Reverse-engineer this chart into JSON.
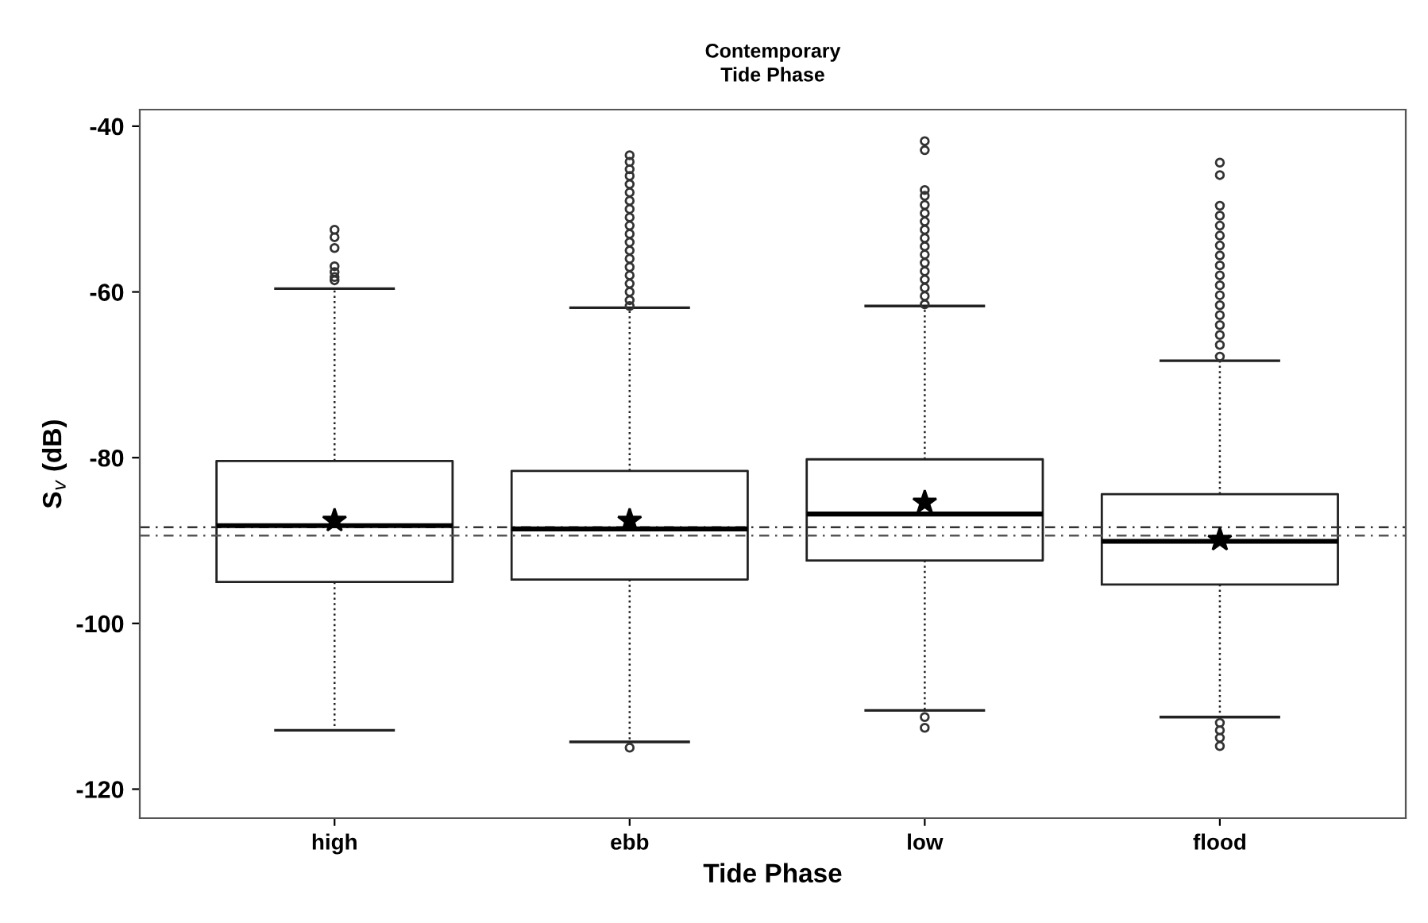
{
  "chart_data": {
    "type": "box",
    "title": "Contemporary",
    "subtitle": "Tide Phase",
    "xlabel": "Tide Phase",
    "ylabel": "S$_{v}$ (dB)",
    "categories": [
      "high",
      "ebb",
      "low",
      "flood"
    ],
    "boxes": [
      {
        "low": -112.9,
        "q1": -95.0,
        "median": -88.2,
        "q3": -80.4,
        "high": -59.6,
        "mean": -87.6,
        "outliers": [
          -52.5,
          -53.4,
          -54.7,
          -56.9,
          -57.6,
          -58.2,
          -58.6
        ]
      },
      {
        "low": -114.3,
        "q1": -94.7,
        "median": -88.6,
        "q3": -81.6,
        "high": -61.9,
        "mean": -87.6,
        "outliers": [
          -43.5,
          -44.3,
          -45.2,
          -46.0,
          -47.0,
          -48.0,
          -49.0,
          -50.0,
          -51.0,
          -52.0,
          -53.0,
          -54.0,
          -55.0,
          -56.0,
          -57.0,
          -58.0,
          -59.0,
          -60.0,
          -61.0,
          -61.7,
          -115.0
        ]
      },
      {
        "low": -110.5,
        "q1": -92.4,
        "median": -86.8,
        "q3": -80.2,
        "high": -61.7,
        "mean": -85.4,
        "outliers": [
          -41.8,
          -42.9,
          -47.7,
          -48.4,
          -49.5,
          -50.5,
          -51.5,
          -52.5,
          -53.5,
          -54.5,
          -55.5,
          -56.5,
          -57.5,
          -58.5,
          -59.5,
          -60.5,
          -61.5,
          -111.3,
          -112.6
        ]
      },
      {
        "low": -111.3,
        "q1": -95.3,
        "median": -90.1,
        "q3": -84.4,
        "high": -68.3,
        "mean": -89.9,
        "outliers": [
          -44.4,
          -45.9,
          -49.6,
          -50.8,
          -52.0,
          -53.2,
          -54.4,
          -55.6,
          -56.8,
          -58.0,
          -59.2,
          -60.4,
          -61.6,
          -62.8,
          -64.0,
          -65.2,
          -66.4,
          -67.8,
          -112.0,
          -112.9,
          -113.8,
          -114.8
        ]
      }
    ],
    "ylim": [
      -123.5,
      -38
    ],
    "yticks": [
      -40,
      -60,
      -80,
      -100,
      -120
    ],
    "ref_lines": [
      {
        "axis": "y",
        "value": -88.4,
        "color": "#333333",
        "line_style": "dashed"
      },
      {
        "axis": "y",
        "value": -89.4,
        "color": "#555555",
        "line_style": "dashed"
      }
    ],
    "grid": false,
    "legend": false
  }
}
